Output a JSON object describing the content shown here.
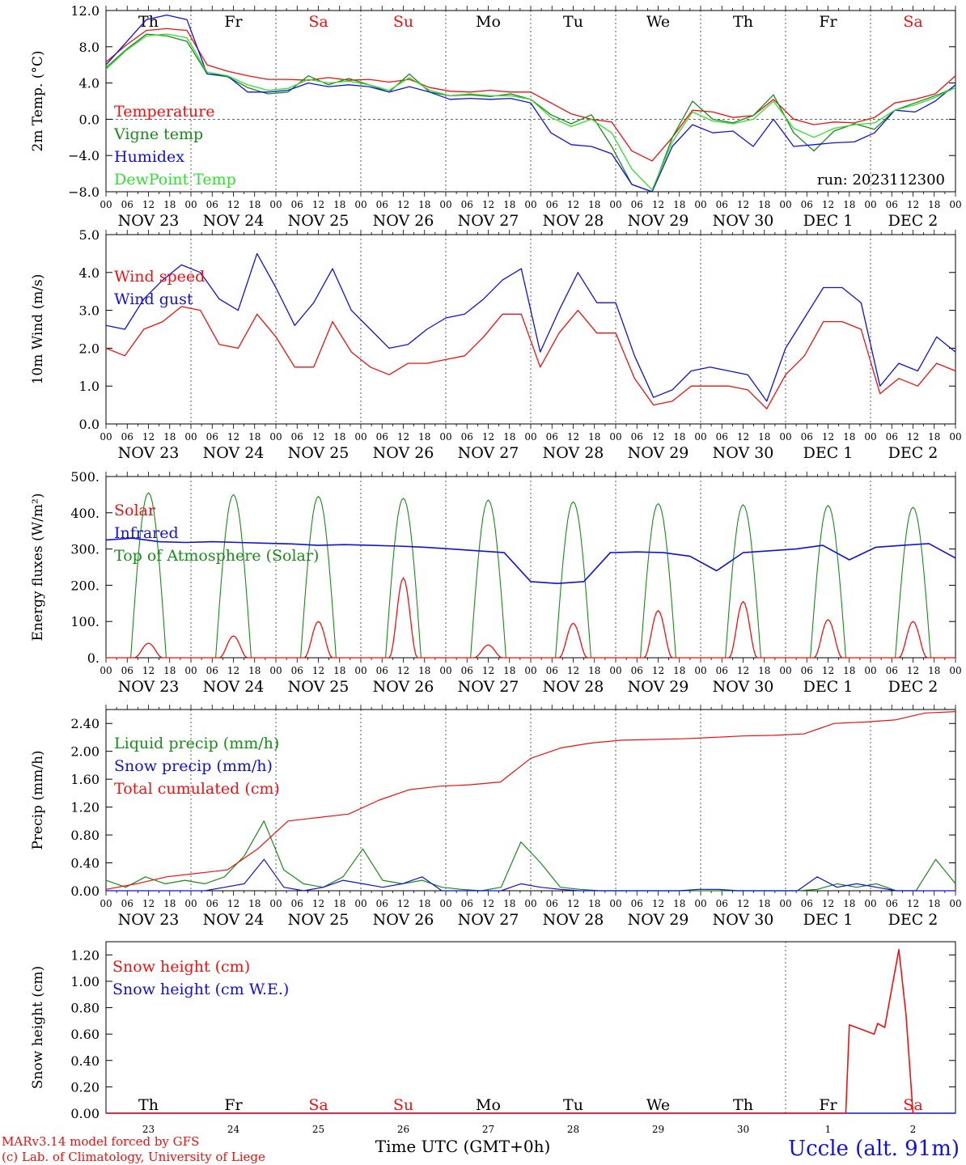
{
  "run_label": "run: 2023112300",
  "x_axis": {
    "title": "Time UTC (GMT+0h)",
    "hour_ticks": [
      "00",
      "06",
      "12",
      "18"
    ],
    "date_labels": [
      "NOV 23",
      "NOV 24",
      "NOV 25",
      "NOV 26",
      "NOV 27",
      "NOV 28",
      "NOV 29",
      "NOV 30",
      "DEC  1",
      "DEC  2"
    ],
    "day_numbers": [
      "23",
      "24",
      "25",
      "26",
      "27",
      "28",
      "29",
      "30",
      "1",
      "2"
    ],
    "day_names": [
      "Th",
      "Fr",
      "Sa",
      "Su",
      "Mo",
      "Tu",
      "We",
      "Th",
      "Fr",
      "Sa"
    ],
    "weekend_days": [
      2,
      3,
      9
    ]
  },
  "footer": {
    "credit_line1": "MARv3.14 model forced by GFS",
    "credit_line2": "(c) Lab. of Climatology, University of Liege",
    "station": "Uccle (alt. 91m)"
  },
  "colors": {
    "red": "#ee1111",
    "green": "#1a8a1a",
    "blue": "#1111dd",
    "lightgreen": "#33dd33"
  },
  "chart_data": [
    {
      "type": "line",
      "ylabel": "2m Temp. (°C)",
      "ylim": [
        -8,
        12
      ],
      "yticks": [
        "12.0",
        "8.0",
        "4.0",
        "0.0",
        "−4.0",
        "−8.0"
      ],
      "ytick_values": [
        12,
        8,
        4,
        0,
        -4,
        -8
      ],
      "x_unit": "hours since NOV 23 00 UTC (6-hourly samples)",
      "series": [
        {
          "name": "Temperature",
          "color": "red",
          "values": [
            6.3,
            8.2,
            9.8,
            10,
            9.8,
            6,
            5.3,
            4.8,
            4.4,
            4.4,
            4.3,
            4.6,
            4.3,
            4.4,
            4.1,
            4.4,
            3.5,
            3.1,
            3,
            3.2,
            3,
            3,
            1.8,
            0.6,
            0,
            -0.3,
            -3.5,
            -4.6,
            -2,
            1,
            0.8,
            0.2,
            0.4,
            2.2,
            0,
            -0.6,
            -0.3,
            -0.4,
            0.2,
            1.8,
            2.2,
            2.8,
            4.8
          ]
        },
        {
          "name": "Vigne temp",
          "color": "green",
          "values": [
            5.7,
            7.7,
            9.4,
            9.2,
            8.6,
            5,
            4.7,
            3.5,
            2.8,
            3,
            4.8,
            3.8,
            4.5,
            3.8,
            3,
            5,
            3,
            2.6,
            2.7,
            2.5,
            2.8,
            2.2,
            0.5,
            -0.5,
            0.5,
            -3,
            -7.2,
            -8,
            -2,
            2,
            0,
            -0.4,
            0.4,
            2.7,
            -1.5,
            -3.5,
            -1.3,
            -0.5,
            -1.1,
            1,
            1.8,
            2.6,
            3.5
          ]
        },
        {
          "name": "Humidex",
          "color": "blue",
          "values": [
            6,
            8.5,
            11,
            11.5,
            11,
            5,
            4.8,
            3,
            3,
            3.2,
            4,
            3.6,
            3.8,
            3.6,
            3,
            3.6,
            3,
            2.2,
            2.3,
            2.2,
            2.3,
            1.8,
            -1.5,
            -2.8,
            -3,
            -3.8,
            -7.2,
            -8,
            -3,
            -0.6,
            -1.5,
            -1.3,
            -3,
            0,
            -3,
            -2.8,
            -2.6,
            -2.5,
            -1.5,
            1,
            0.8,
            2,
            3.8
          ]
        },
        {
          "name": "DewPoint Temp",
          "color": "lightgreen",
          "values": [
            5.5,
            7.6,
            9.2,
            9.4,
            9,
            5.2,
            4.8,
            3.8,
            3.2,
            3.4,
            4.4,
            4,
            4.2,
            3.8,
            3.2,
            4.6,
            3.2,
            2.6,
            2.8,
            2.6,
            2.6,
            2.2,
            0.2,
            -0.8,
            0,
            -1.5,
            -5.5,
            -7.8,
            -2.5,
            0.8,
            -0.2,
            -0.5,
            0,
            2,
            -1,
            -2,
            -1,
            -0.6,
            -0.4,
            1,
            1.6,
            2.4,
            3.5
          ]
        }
      ]
    },
    {
      "type": "line",
      "ylabel": "10m Wind (m/s)",
      "ylim": [
        0,
        5
      ],
      "yticks": [
        "5.0",
        "4.0",
        "3.0",
        "2.0",
        "1.0",
        "0.0"
      ],
      "ytick_values": [
        5,
        4,
        3,
        2,
        1,
        0
      ],
      "series": [
        {
          "name": "Wind speed",
          "color": "red",
          "values": [
            2,
            1.8,
            2.5,
            2.7,
            3.1,
            3,
            2.1,
            2,
            2.9,
            2.3,
            1.5,
            1.5,
            2.7,
            1.9,
            1.5,
            1.3,
            1.6,
            1.6,
            1.7,
            1.8,
            2.3,
            2.9,
            2.9,
            1.5,
            2.4,
            3,
            2.4,
            2.4,
            1.2,
            0.5,
            0.6,
            1,
            1,
            1,
            0.9,
            0.4,
            1.3,
            1.8,
            2.7,
            2.7,
            2.5,
            0.8,
            1.2,
            1,
            1.6,
            1.4
          ]
        },
        {
          "name": "Wind gust",
          "color": "blue",
          "values": [
            2.6,
            2.5,
            3.3,
            3.8,
            4.2,
            4,
            3.3,
            3,
            4.5,
            3.6,
            2.6,
            3.2,
            4.1,
            3,
            2.5,
            2,
            2.1,
            2.5,
            2.8,
            2.9,
            3.3,
            3.8,
            4.1,
            1.9,
            3,
            4,
            3.2,
            3.2,
            1.8,
            0.7,
            0.9,
            1.4,
            1.5,
            1.4,
            1.3,
            0.6,
            2,
            2.8,
            3.6,
            3.6,
            3.2,
            1,
            1.6,
            1.4,
            2.3,
            1.9
          ]
        }
      ]
    },
    {
      "type": "line",
      "ylabel": "Energy fluxes (W/m²)",
      "ylim": [
        0,
        500
      ],
      "yticks": [
        "500.",
        "400.",
        "300.",
        "200.",
        "100.",
        "0."
      ],
      "ytick_values": [
        500,
        400,
        300,
        200,
        100,
        0
      ],
      "series": [
        {
          "name": "Solar",
          "color": "red",
          "peaks": [
            40,
            60,
            100,
            220,
            35,
            95,
            130,
            155,
            105,
            100
          ]
        },
        {
          "name": "Infrared",
          "color": "blue",
          "values": [
            325,
            330,
            320,
            318,
            320,
            318,
            316,
            314,
            310,
            312,
            310,
            308,
            305,
            300,
            295,
            290,
            210,
            205,
            210,
            290,
            292,
            290,
            280,
            240,
            290,
            295,
            300,
            310,
            270,
            305,
            310,
            315,
            275
          ]
        },
        {
          "name": "Top of Atmosphere (Solar)",
          "color": "green",
          "peaks": [
            455,
            450,
            445,
            440,
            435,
            430,
            425,
            422,
            420,
            415
          ]
        }
      ]
    },
    {
      "type": "line",
      "ylabel": "Precip (mm/h)",
      "ylim": [
        0,
        2.6
      ],
      "yticks": [
        "2.40",
        "2.00",
        "1.60",
        "1.20",
        "0.80",
        "0.40",
        "0.00"
      ],
      "ytick_values": [
        2.4,
        2.0,
        1.6,
        1.2,
        0.8,
        0.4,
        0.0
      ],
      "series": [
        {
          "name": "Liquid precip (mm/h)",
          "color": "green",
          "values": [
            0.15,
            0.05,
            0.2,
            0.1,
            0.15,
            0.1,
            0.2,
            0.5,
            1.0,
            0.3,
            0.1,
            0.05,
            0.2,
            0.6,
            0.15,
            0.1,
            0.15,
            0.05,
            0.02,
            0.0,
            0.05,
            0.7,
            0.4,
            0.05,
            0.02,
            0.0,
            0.0,
            0.0,
            0.0,
            0.0,
            0.0,
            0.0,
            0.0,
            0.0,
            0.0,
            0.0,
            0.02,
            0.1,
            0.05,
            0.1,
            0.0,
            0.0,
            0.45,
            0.1
          ]
        },
        {
          "name": "Snow precip (mm/h)",
          "color": "blue",
          "values": [
            0.0,
            0.0,
            0.0,
            0.0,
            0.0,
            0.0,
            0.05,
            0.1,
            0.45,
            0.05,
            0.0,
            0.05,
            0.15,
            0.1,
            0.05,
            0.1,
            0.2,
            0.0,
            0.0,
            0.0,
            0.0,
            0.1,
            0.05,
            0.02,
            0.0,
            0.0,
            0.0,
            0.0,
            0.0,
            0.0,
            0.02,
            0.02,
            0.0,
            0.0,
            0.0,
            0.0,
            0.2,
            0.05,
            0.1,
            0.05,
            0.0,
            0.0,
            0.0,
            0.0
          ]
        },
        {
          "name": "Total cumulated (cm)",
          "color": "red",
          "values": [
            0.02,
            0.1,
            0.2,
            0.25,
            0.3,
            0.6,
            1.0,
            1.05,
            1.1,
            1.3,
            1.45,
            1.5,
            1.52,
            1.56,
            1.9,
            2.05,
            2.12,
            2.16,
            2.17,
            2.18,
            2.2,
            2.22,
            2.23,
            2.25,
            2.4,
            2.42,
            2.45,
            2.55,
            2.57
          ]
        }
      ]
    },
    {
      "type": "line",
      "ylabel": "Snow height (cm)",
      "ylim": [
        0,
        1.3
      ],
      "yticks": [
        "1.20",
        "1.00",
        "0.80",
        "0.60",
        "0.40",
        "0.20",
        "0.00"
      ],
      "ytick_values": [
        1.2,
        1.0,
        0.8,
        0.6,
        0.4,
        0.2,
        0.0
      ],
      "series": [
        {
          "name": "Snow height (cm)",
          "color": "red",
          "x_hours": [
            0,
            209,
            210,
            217,
            218,
            220,
            224,
            226,
            228,
            229
          ],
          "values": [
            0,
            0,
            0.67,
            0.6,
            0.68,
            0.65,
            1.24,
            0.75,
            0,
            0
          ]
        },
        {
          "name": "Snow height (cm W.E.)",
          "color": "blue",
          "x_hours": [
            0,
            240
          ],
          "values": [
            0,
            0
          ]
        }
      ]
    }
  ]
}
